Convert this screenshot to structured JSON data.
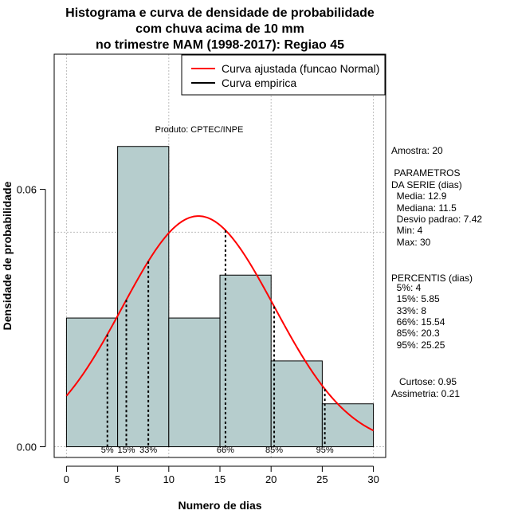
{
  "chart_data": {
    "type": "bar",
    "title_lines": [
      "Histograma e curva de densidade de probabilidade",
      "com chuva acima de 10 mm",
      "no trimestre MAM (1998-2017): Regiao 45"
    ],
    "xlabel": "Numero de dias",
    "ylabel": "Densidade de probabilidade",
    "xlim": [
      -1.2,
      31.2
    ],
    "ylim": [
      -0.0025,
      0.0915
    ],
    "x_ticks": [
      0,
      5,
      10,
      15,
      20,
      25,
      30
    ],
    "x_tick_labels": [
      "0",
      "5",
      "10",
      "15",
      "20",
      "25",
      "30"
    ],
    "y_ticks": [
      0.0,
      0.06
    ],
    "y_tick_labels": [
      "0.00",
      "0.06"
    ],
    "grid_x": [
      0,
      10,
      20,
      30
    ],
    "grid_y": [
      0.0,
      0.05,
      0.1
    ],
    "bins": [
      {
        "x0": 0,
        "x1": 5,
        "density": 0.03
      },
      {
        "x0": 5,
        "x1": 10,
        "density": 0.07
      },
      {
        "x0": 10,
        "x1": 15,
        "density": 0.03
      },
      {
        "x0": 15,
        "x1": 20,
        "density": 0.04
      },
      {
        "x0": 20,
        "x1": 25,
        "density": 0.02
      },
      {
        "x0": 25,
        "x1": 30,
        "density": 0.01
      }
    ],
    "normal_curve": {
      "mean": 12.9,
      "sd": 7.42,
      "x_from": 0,
      "x_to": 30,
      "color": "#ff0000"
    },
    "bar_fill": "#b6cdcd",
    "percentile_markers": [
      {
        "label": "5%",
        "x": 4
      },
      {
        "label": "15%",
        "x": 5.85
      },
      {
        "label": "33%",
        "x": 8
      },
      {
        "label": "66%",
        "x": 15.54
      },
      {
        "label": "85%",
        "x": 20.3
      },
      {
        "label": "95%",
        "x": 25.25
      }
    ],
    "legend": {
      "position": "top-right",
      "entries": [
        {
          "label": "Curva ajustada (funcao Normal)",
          "color": "#ff0000"
        },
        {
          "label": "Curva empirica",
          "color": "#000000"
        }
      ]
    },
    "annotation": "Produto: CPTEC/INPE",
    "side_panel": [
      "Amostra: 20",
      " PARAMETROS",
      "DA SERIE (dias)",
      "  Media: 12.9",
      "  Mediana: 11.5",
      "  Desvio padrao: 7.42",
      "  Min: 4",
      "  Max: 30",
      "PERCENTIS (dias)",
      "  5%: 4",
      "  15%: 5.85",
      "  33%: 8",
      "  66%: 15.54",
      "  85%: 20.3",
      "  95%: 25.25",
      "   Curtose: 0.95",
      "Assimetria: 0.21"
    ]
  }
}
